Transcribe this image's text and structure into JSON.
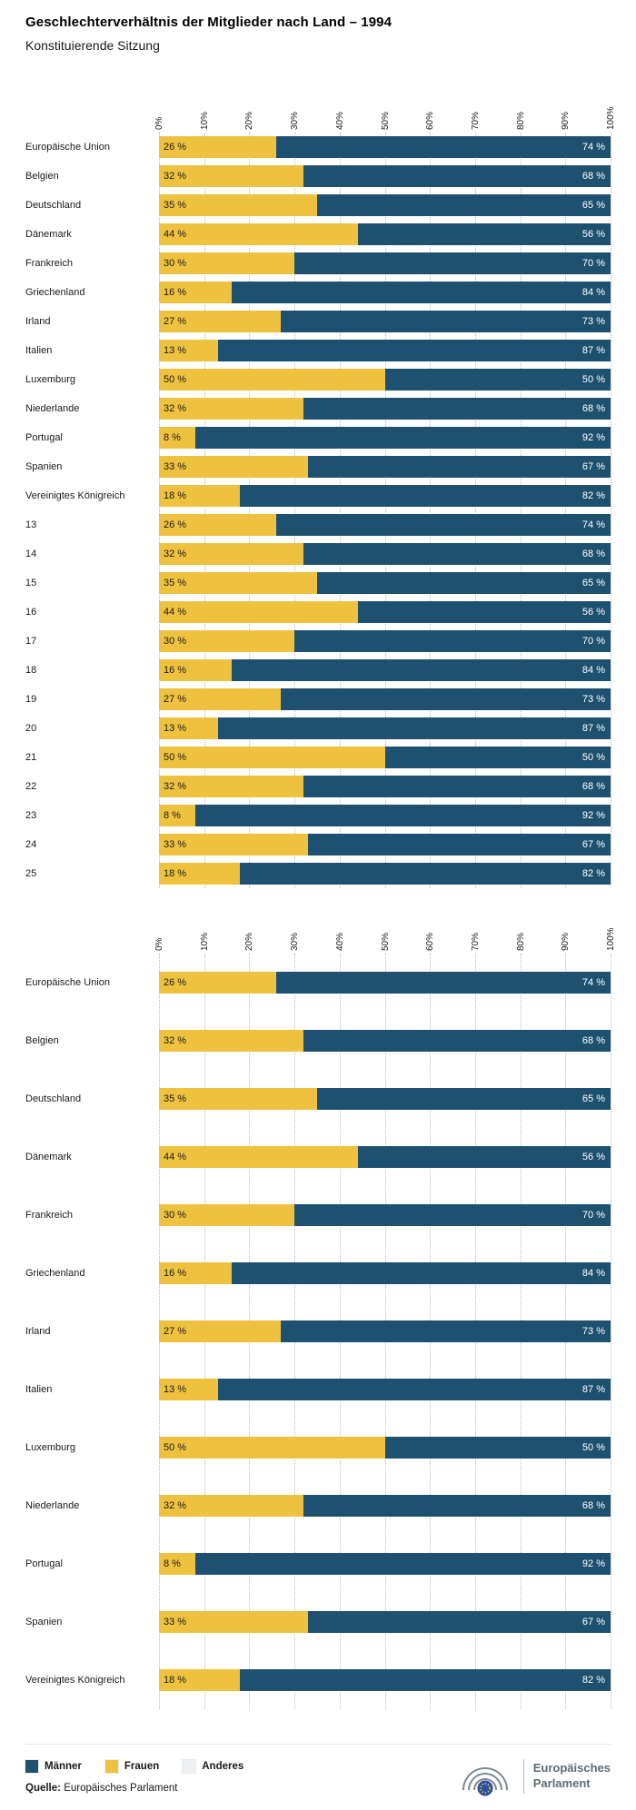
{
  "title": "Geschlechterverhältnis der Mitglieder nach Land – 1994",
  "subtitle": "Konstituierende Sitzung",
  "legend": [
    {
      "label": "Männer",
      "color": "#1e5170"
    },
    {
      "label": "Frauen",
      "color": "#eec13e"
    },
    {
      "label": "Anderes",
      "color": "#edf0f2"
    }
  ],
  "source": {
    "prefix": "Quelle:",
    "text": "Europäisches Parlament"
  },
  "logo": {
    "line1": "Europäisches",
    "line2": "Parlament"
  },
  "chart_data": [
    {
      "type": "bar",
      "orientation": "horizontal",
      "stacked": true,
      "unit": "%",
      "xlim": [
        0,
        100
      ],
      "x_ticks": [
        "0%",
        "10%",
        "20%",
        "30%",
        "40%",
        "50%",
        "60%",
        "70%",
        "80%",
        "90%",
        "100%"
      ],
      "series_names": [
        "Frauen",
        "Männer"
      ],
      "rows": [
        {
          "label": "Europäische Union",
          "frauen": 26,
          "maenner": 74
        },
        {
          "label": "Belgien",
          "frauen": 32,
          "maenner": 68
        },
        {
          "label": "Deutschland",
          "frauen": 35,
          "maenner": 65
        },
        {
          "label": "Dänemark",
          "frauen": 44,
          "maenner": 56
        },
        {
          "label": "Frankreich",
          "frauen": 30,
          "maenner": 70
        },
        {
          "label": "Griechenland",
          "frauen": 16,
          "maenner": 84
        },
        {
          "label": "Irland",
          "frauen": 27,
          "maenner": 73
        },
        {
          "label": "Italien",
          "frauen": 13,
          "maenner": 87
        },
        {
          "label": "Luxemburg",
          "frauen": 50,
          "maenner": 50
        },
        {
          "label": "Niederlande",
          "frauen": 32,
          "maenner": 68
        },
        {
          "label": "Portugal",
          "frauen": 8,
          "maenner": 92
        },
        {
          "label": "Spanien",
          "frauen": 33,
          "maenner": 67
        },
        {
          "label": "Vereinigtes Königreich",
          "frauen": 18,
          "maenner": 82
        },
        {
          "label": "13",
          "frauen": 26,
          "maenner": 74
        },
        {
          "label": "14",
          "frauen": 32,
          "maenner": 68
        },
        {
          "label": "15",
          "frauen": 35,
          "maenner": 65
        },
        {
          "label": "16",
          "frauen": 44,
          "maenner": 56
        },
        {
          "label": "17",
          "frauen": 30,
          "maenner": 70
        },
        {
          "label": "18",
          "frauen": 16,
          "maenner": 84
        },
        {
          "label": "19",
          "frauen": 27,
          "maenner": 73
        },
        {
          "label": "20",
          "frauen": 13,
          "maenner": 87
        },
        {
          "label": "21",
          "frauen": 50,
          "maenner": 50
        },
        {
          "label": "22",
          "frauen": 32,
          "maenner": 68
        },
        {
          "label": "23",
          "frauen": 8,
          "maenner": 92
        },
        {
          "label": "24",
          "frauen": 33,
          "maenner": 67
        },
        {
          "label": "25",
          "frauen": 18,
          "maenner": 82
        }
      ]
    },
    {
      "type": "bar",
      "orientation": "horizontal",
      "stacked": true,
      "unit": "%",
      "xlim": [
        0,
        100
      ],
      "x_ticks": [
        "0%",
        "10%",
        "20%",
        "30%",
        "40%",
        "50%",
        "60%",
        "70%",
        "80%",
        "90%",
        "100%"
      ],
      "series_names": [
        "Frauen",
        "Männer"
      ],
      "rows": [
        {
          "label": "Europäische Union",
          "frauen": 26,
          "maenner": 74
        },
        {
          "label": "Belgien",
          "frauen": 32,
          "maenner": 68
        },
        {
          "label": "Deutschland",
          "frauen": 35,
          "maenner": 65
        },
        {
          "label": "Dänemark",
          "frauen": 44,
          "maenner": 56
        },
        {
          "label": "Frankreich",
          "frauen": 30,
          "maenner": 70
        },
        {
          "label": "Griechenland",
          "frauen": 16,
          "maenner": 84
        },
        {
          "label": "Irland",
          "frauen": 27,
          "maenner": 73
        },
        {
          "label": "Italien",
          "frauen": 13,
          "maenner": 87
        },
        {
          "label": "Luxemburg",
          "frauen": 50,
          "maenner": 50
        },
        {
          "label": "Niederlande",
          "frauen": 32,
          "maenner": 68
        },
        {
          "label": "Portugal",
          "frauen": 8,
          "maenner": 92
        },
        {
          "label": "Spanien",
          "frauen": 33,
          "maenner": 67
        },
        {
          "label": "Vereinigtes Königreich",
          "frauen": 18,
          "maenner": 82
        }
      ]
    }
  ]
}
